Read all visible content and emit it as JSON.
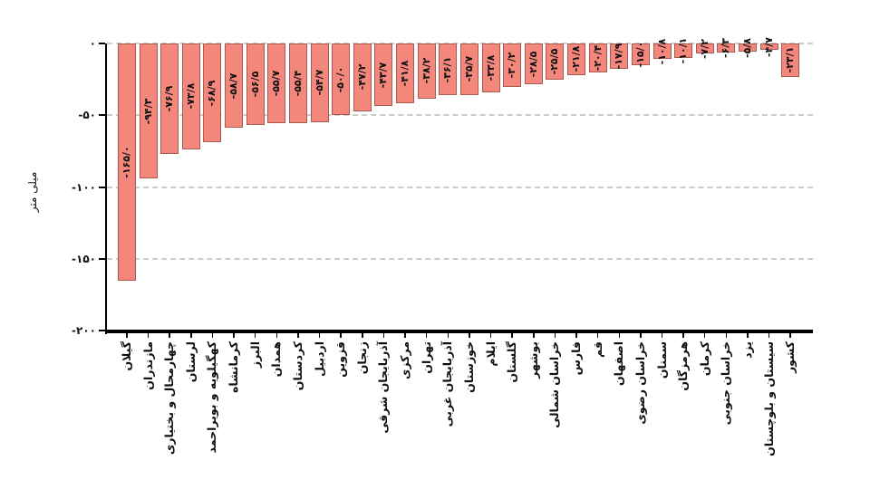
{
  "chart_data": {
    "type": "bar",
    "title": "",
    "ylabel": "میلی متر",
    "xlabel": "",
    "ylim": [
      -200,
      0
    ],
    "grid": "horizontal-dashed",
    "legend": "none",
    "bar_orientation": "vertical-negative",
    "colors": {
      "bar_fill": "#f3877c",
      "bar_edge": "#a85a52",
      "grid": "#cccccc",
      "axis": "#000000",
      "text": "#111111",
      "background": "#ffffff"
    },
    "yticks": {
      "values": [
        0,
        -50,
        -100,
        -150,
        -200
      ],
      "labels": [
        "۰",
        "-۵۰",
        "-۱۰۰",
        "-۱۵۰",
        "-۲۰۰"
      ]
    },
    "categories": [
      "گیلان",
      "مازندران",
      "چهارمحال و بختیاری",
      "لرستان",
      "کهگیلویه و بویراحمد",
      "کرمانشاه",
      "البرز",
      "همدان",
      "کردستان",
      "اردبیل",
      "قزوین",
      "زنجان",
      "آذربایجان شرقی",
      "مرکزی",
      "تهران",
      "آذربایجان غربی",
      "خوزستان",
      "ایلام",
      "گلستان",
      "بوشهر",
      "خراسان شمالی",
      "فارس",
      "قم",
      "اصفهان",
      "خراسان رضوی",
      "سمنان",
      "هرمزگان",
      "کرمان",
      "خراسان جنوبی",
      "یزد",
      "سیستان و بلوچستان",
      "کشور"
    ],
    "values": [
      -165.0,
      -94.3,
      -76.9,
      -73.8,
      -68.9,
      -58.7,
      -56.5,
      -55.7,
      -55.4,
      -54.7,
      -50.0,
      -47.2,
      -43.7,
      -41.8,
      -38.2,
      -36.1,
      -35.7,
      -33.8,
      -30.2,
      -28.5,
      -25.5,
      -21.8,
      -20.4,
      -17.9,
      -15.0,
      -10.8,
      -10.1,
      -7.2,
      -6.3,
      -5.8,
      -4.7,
      -23.1
    ],
    "value_labels": [
      "-۱۶۵/۰",
      "-۹۴/۳",
      "-۷۶/۹",
      "-۷۳/۸",
      "-۶۸/۹",
      "-۵۸/۷",
      "-۵۶/۵",
      "-۵۵/۷",
      "-۵۵/۴",
      "-۵۴/۷",
      "-۵۰/۰",
      "-۴۷/۲",
      "-۴۳/۷",
      "-۴۱/۸",
      "-۳۸/۲",
      "-۳۶/۱",
      "-۳۵/۷",
      "-۳۳/۸",
      "-۳۰/۲",
      "-۲۸/۵",
      "-۲۵/۵",
      "-۲۱/۸",
      "-۲۰/۴",
      "-۱۷/۹",
      "-۱۵/۰",
      "-۱۰/۸",
      "-۱۰/۱",
      "-۷/۲",
      "-۶/۳",
      "-۵/۸",
      "-۴/۷",
      "-۲۳/۱"
    ]
  }
}
